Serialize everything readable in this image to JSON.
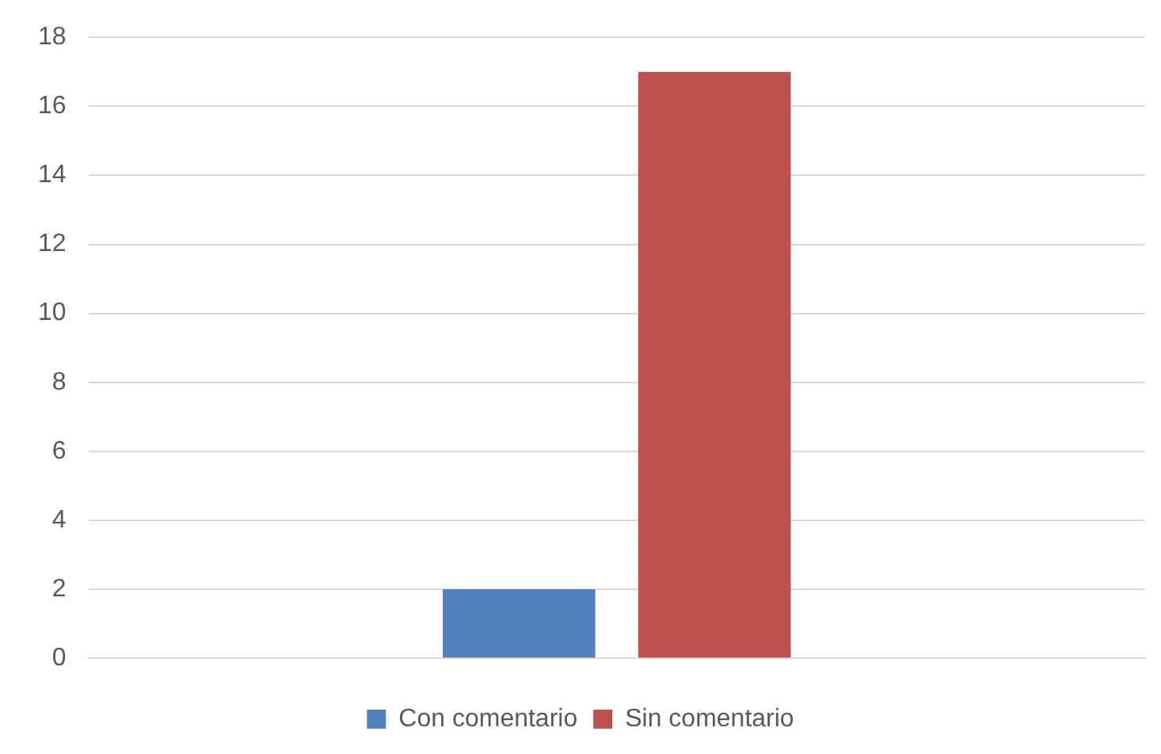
{
  "chart_data": {
    "type": "bar",
    "categories": [
      null
    ],
    "series": [
      {
        "name": "Con comentario",
        "color": "#4f81bd",
        "values": [
          2
        ]
      },
      {
        "name": "Sin comentario",
        "color": "#c0504d",
        "values": [
          17
        ]
      }
    ],
    "ylim": [
      0,
      18
    ],
    "yticks": [
      0,
      2,
      4,
      6,
      8,
      10,
      12,
      14,
      16,
      18
    ],
    "grid": "y",
    "legend": "bottom"
  }
}
